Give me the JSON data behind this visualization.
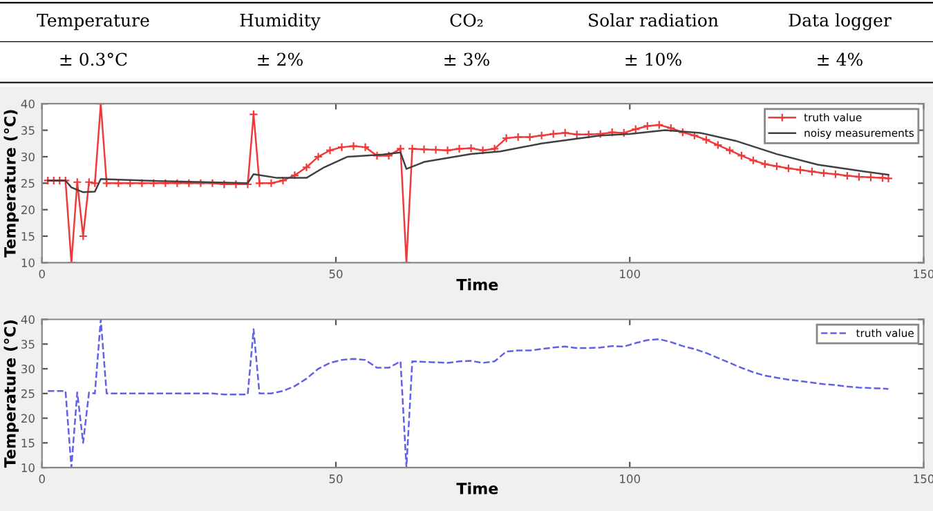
{
  "chart_data": [
    {
      "type": "other",
      "annotations": [
        "Temperature",
        "Humidity",
        "CO₂",
        "Solar radiation",
        "Data logger",
        "± 0.3°C",
        "± 2%",
        "± 3%",
        "± 10%",
        "± 4%"
      ]
    },
    {
      "type": "line",
      "xlabel": "Time",
      "ylabel": "Temperature (°C)",
      "xlim": [
        0,
        150
      ],
      "ylim": [
        10,
        40
      ],
      "xticks": [
        0,
        50,
        100,
        150
      ],
      "yticks": [
        10,
        15,
        20,
        25,
        30,
        35,
        40
      ],
      "legend": "top right",
      "series": [
        {
          "name": "truth value",
          "color": "#f03a3a",
          "marker": "cross",
          "line_style": "solid",
          "x": [
            1,
            2,
            3,
            4,
            5,
            6,
            7,
            8,
            9,
            10,
            11,
            13,
            15,
            17,
            19,
            21,
            23,
            25,
            27,
            29,
            31,
            33,
            35,
            36,
            37,
            39,
            41,
            43,
            45,
            47,
            49,
            51,
            53,
            55,
            57,
            59,
            61,
            62,
            63,
            65,
            67,
            69,
            71,
            73,
            75,
            77,
            79,
            81,
            83,
            85,
            87,
            89,
            91,
            93,
            95,
            97,
            99,
            101,
            103,
            105,
            107,
            109,
            111,
            113,
            115,
            117,
            119,
            121,
            123,
            125,
            127,
            129,
            131,
            133,
            135,
            137,
            139,
            141,
            143,
            144
          ],
          "values": [
            25.5,
            25.5,
            25.5,
            25.5,
            10,
            25.2,
            15,
            25.2,
            25,
            40,
            25,
            25,
            25,
            25,
            25,
            25,
            25,
            25,
            25,
            25,
            24.8,
            24.8,
            24.8,
            38,
            25,
            25,
            25.5,
            26.5,
            28,
            30,
            31.2,
            31.8,
            32,
            31.8,
            30.2,
            30.2,
            31.5,
            10,
            31.5,
            31.4,
            31.3,
            31.2,
            31.5,
            31.6,
            31.2,
            31.5,
            33.5,
            33.7,
            33.7,
            34,
            34.3,
            34.5,
            34.2,
            34.2,
            34.3,
            34.6,
            34.5,
            35.2,
            35.8,
            36,
            35.4,
            34.6,
            34,
            33.2,
            32.2,
            31.2,
            30.2,
            29.3,
            28.6,
            28.2,
            27.8,
            27.5,
            27.2,
            26.9,
            26.7,
            26.4,
            26.2,
            26.1,
            26,
            25.9
          ]
        },
        {
          "name": "noisy measurements",
          "color": "#404040",
          "marker": "none",
          "line_style": "solid",
          "x": [
            1,
            4,
            5,
            7,
            9,
            10,
            20,
            35,
            36,
            40,
            45,
            48,
            52,
            58,
            61,
            62,
            65,
            73,
            78,
            85,
            95,
            100,
            106,
            112,
            118,
            125,
            132,
            140,
            144
          ],
          "values": [
            25.5,
            25.5,
            24.2,
            23.3,
            23.4,
            25.8,
            25.4,
            25,
            26.7,
            26,
            26,
            28,
            30,
            30.4,
            30.8,
            27.7,
            29,
            30.5,
            31,
            32.5,
            34,
            34.3,
            35,
            34.5,
            33,
            30.5,
            28.5,
            27.2,
            26.6
          ]
        }
      ]
    },
    {
      "type": "line",
      "xlabel": "Time",
      "ylabel": "Temperature (°C)",
      "xlim": [
        0,
        150
      ],
      "ylim": [
        10,
        40
      ],
      "xticks": [
        0,
        50,
        100,
        150
      ],
      "yticks": [
        10,
        15,
        20,
        25,
        30,
        35,
        40
      ],
      "legend": "top right",
      "series": [
        {
          "name": "truth value",
          "color": "#6060e8",
          "marker": "none",
          "line_style": "dashed",
          "x": [
            1,
            2,
            3,
            4,
            5,
            6,
            7,
            8,
            9,
            10,
            11,
            13,
            15,
            17,
            19,
            21,
            23,
            25,
            27,
            29,
            31,
            33,
            35,
            36,
            37,
            39,
            41,
            43,
            45,
            47,
            49,
            51,
            53,
            55,
            57,
            59,
            61,
            62,
            63,
            65,
            67,
            69,
            71,
            73,
            75,
            77,
            79,
            81,
            83,
            85,
            87,
            89,
            91,
            93,
            95,
            97,
            99,
            101,
            103,
            105,
            107,
            109,
            111,
            113,
            115,
            117,
            119,
            121,
            123,
            125,
            127,
            129,
            131,
            133,
            135,
            137,
            139,
            141,
            143,
            144
          ],
          "values": [
            25.5,
            25.5,
            25.5,
            25.5,
            10,
            25.2,
            15,
            25.2,
            25,
            40,
            25,
            25,
            25,
            25,
            25,
            25,
            25,
            25,
            25,
            25,
            24.8,
            24.8,
            24.8,
            38,
            25,
            25,
            25.5,
            26.5,
            28,
            30,
            31.2,
            31.8,
            32,
            31.8,
            30.2,
            30.2,
            31.5,
            10,
            31.5,
            31.4,
            31.3,
            31.2,
            31.5,
            31.6,
            31.2,
            31.5,
            33.5,
            33.7,
            33.7,
            34,
            34.3,
            34.5,
            34.2,
            34.2,
            34.3,
            34.6,
            34.5,
            35.2,
            35.8,
            36,
            35.4,
            34.6,
            34,
            33.2,
            32.2,
            31.2,
            30.2,
            29.3,
            28.6,
            28.2,
            27.8,
            27.5,
            27.2,
            26.9,
            26.7,
            26.4,
            26.2,
            26.1,
            26,
            25.9
          ]
        }
      ]
    }
  ]
}
